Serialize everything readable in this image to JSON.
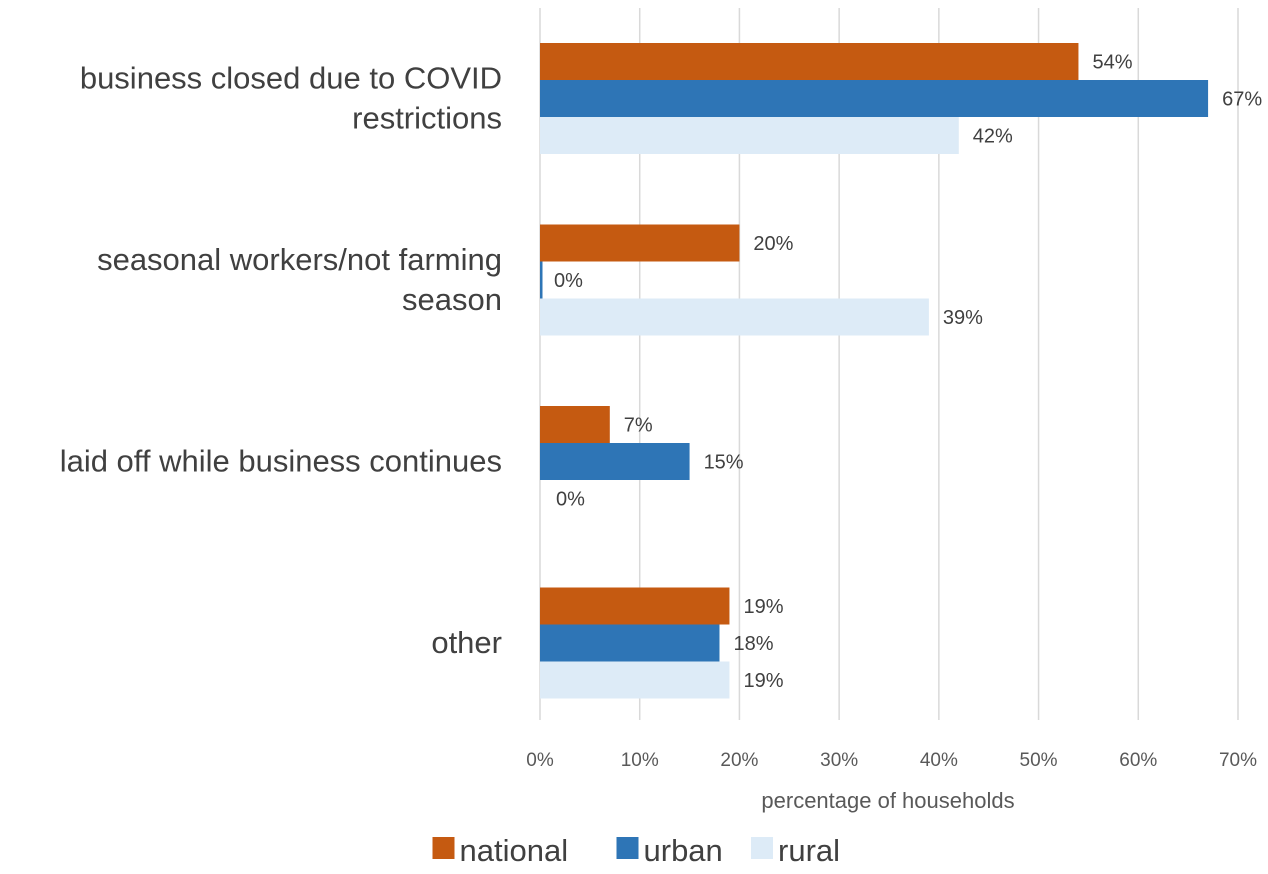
{
  "chart_data": {
    "type": "bar",
    "orientation": "horizontal",
    "categories": [
      [
        "business closed due to COVID",
        "restrictions"
      ],
      [
        "seasonal workers/not farming",
        "season"
      ],
      [
        "laid off while business continues"
      ],
      [
        "other"
      ]
    ],
    "series": [
      {
        "name": "national",
        "color": "#C55A11",
        "values": [
          54,
          20,
          7,
          19
        ],
        "labels": [
          "54%",
          "20%",
          "7%",
          "19%"
        ]
      },
      {
        "name": "urban",
        "color": "#2E75B6",
        "values": [
          67,
          0,
          15,
          18
        ],
        "labels": [
          "67%",
          "0%",
          "15%",
          "18%"
        ]
      },
      {
        "name": "rural",
        "color": "#DDEBF7",
        "values": [
          42,
          39,
          0,
          19
        ],
        "labels": [
          "42%",
          "39%",
          "0%",
          "19%"
        ]
      }
    ],
    "xlabel": "percentage of households",
    "xlim": [
      0,
      70
    ],
    "xticks": [
      "0%",
      "10%",
      "20%",
      "30%",
      "40%",
      "50%",
      "60%",
      "70%"
    ],
    "grid": "vertical",
    "legend_position": "bottom"
  }
}
